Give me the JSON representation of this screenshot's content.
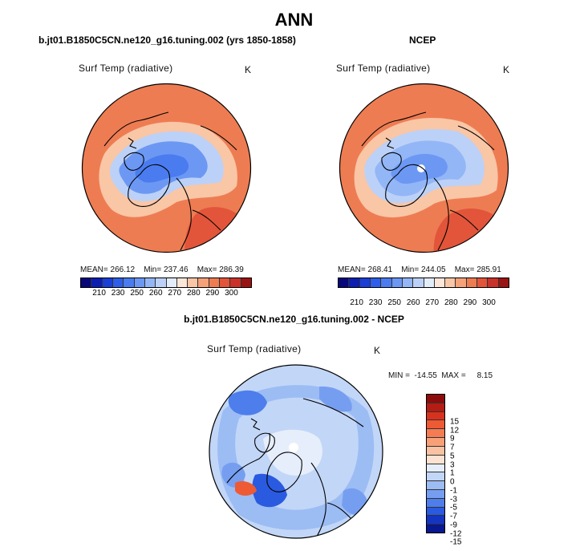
{
  "figure": {
    "title": "ANN"
  },
  "panels": {
    "model": {
      "title": "b.jt01.B1850C5CN.ne120_g16.tuning.002 (yrs 1850-1858)",
      "variable": "Surf Temp (radiative)",
      "units": "K",
      "mean_label": "MEAN=",
      "mean": "266.12",
      "min_label": "Min=",
      "min": "237.46",
      "max_label": "Max=",
      "max": "286.39"
    },
    "obs": {
      "title": "NCEP",
      "variable": "Surf Temp (radiative)",
      "units": "K",
      "mean_label": "MEAN=",
      "mean": "268.41",
      "min_label": "Min=",
      "min": "244.05",
      "max_label": "Max=",
      "max": "285.91"
    },
    "diff": {
      "title": "b.jt01.B1850C5CN.ne120_g16.tuning.002 - NCEP",
      "variable": "Surf Temp (radiative)",
      "units": "K",
      "minmax_text": "MIN =  -14.55  MAX =     8.15"
    }
  },
  "chart_data": [
    {
      "type": "heatmap",
      "projection": "north polar stereographic",
      "title": "b.jt01.B1850C5CN.ne120_g16.tuning.002 (yrs 1850-1858)",
      "variable": "Surf Temp (radiative)",
      "units": "K",
      "mean": 266.12,
      "min": 237.46,
      "max": 286.39,
      "colorbar_ticks": [
        "210",
        "230",
        "250",
        "260",
        "270",
        "280",
        "290",
        "300"
      ],
      "colorbar_colors": [
        "#08087a",
        "#0c1fb0",
        "#1a3fd6",
        "#2e5ee8",
        "#4a7cf0",
        "#6c98f4",
        "#93b6f6",
        "#bcd1f7",
        "#e3ecf9",
        "#fbe6d8",
        "#f9c6a6",
        "#f5a27a",
        "#ee7c52",
        "#e2553a",
        "#c8322a",
        "#9a1414"
      ]
    },
    {
      "type": "heatmap",
      "projection": "north polar stereographic",
      "title": "NCEP",
      "variable": "Surf Temp (radiative)",
      "units": "K",
      "mean": 268.41,
      "min": 244.05,
      "max": 285.91,
      "colorbar_ticks": [
        "210",
        "230",
        "250",
        "260",
        "270",
        "280",
        "290",
        "300"
      ],
      "colorbar_colors": [
        "#08087a",
        "#0c1fb0",
        "#1a3fd6",
        "#2e5ee8",
        "#4a7cf0",
        "#6c98f4",
        "#93b6f6",
        "#bcd1f7",
        "#e3ecf9",
        "#fbe6d8",
        "#f9c6a6",
        "#f5a27a",
        "#ee7c52",
        "#e2553a",
        "#c8322a",
        "#9a1414"
      ]
    },
    {
      "type": "heatmap",
      "projection": "north polar stereographic",
      "title": "b.jt01.B1850C5CN.ne120_g16.tuning.002 - NCEP",
      "variable": "Surf Temp (radiative)",
      "units": "K",
      "min": -14.55,
      "max": 8.15,
      "colorbar_ticks": [
        "15",
        "12",
        "9",
        "7",
        "5",
        "3",
        "1",
        "0",
        "-1",
        "-3",
        "-5",
        "-7",
        "-9",
        "-12",
        "-15"
      ],
      "colorbar_colors": [
        "#8c0c0c",
        "#b51c14",
        "#d8321e",
        "#ee5a34",
        "#f57c52",
        "#f8a078",
        "#f9c2a2",
        "#fbe2d2",
        "#e6eefb",
        "#c2d6f7",
        "#9cbcf4",
        "#769ef0",
        "#4e7eec",
        "#2a5ae0",
        "#1434c2",
        "#081890"
      ]
    }
  ]
}
